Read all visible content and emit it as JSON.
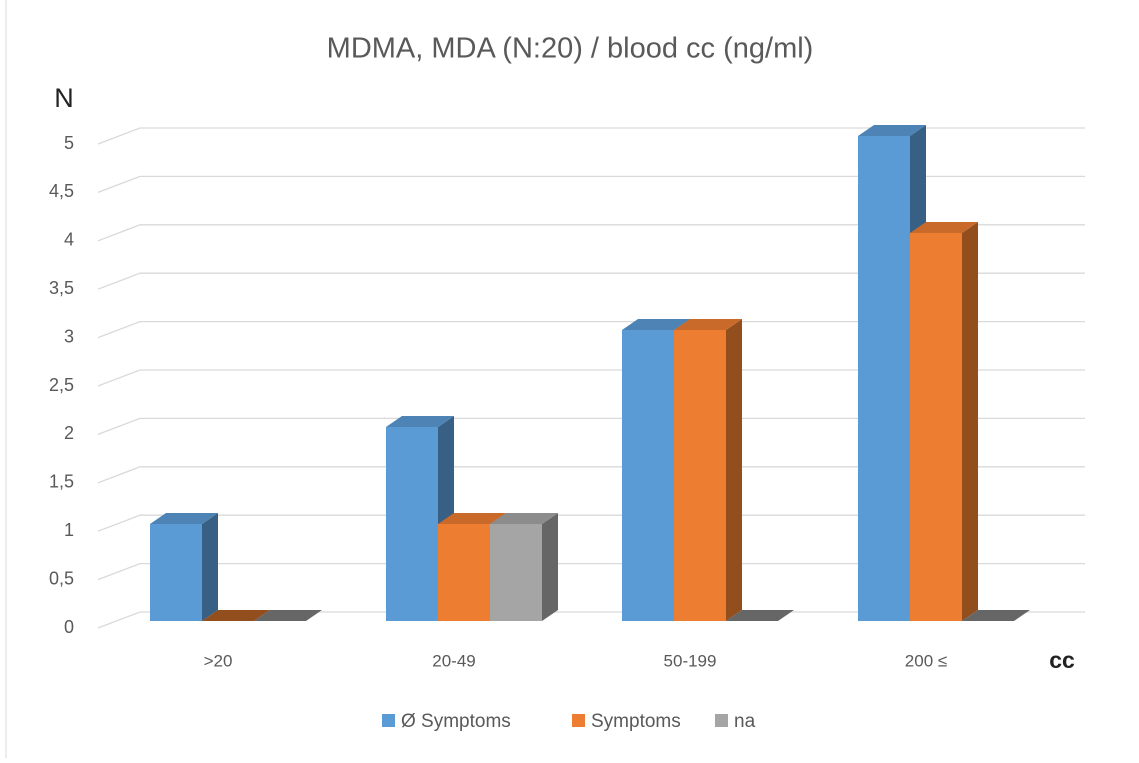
{
  "chart_data": {
    "type": "bar3d",
    "title": "MDMA, MDA (N:20) / blood cc (ng/ml)",
    "y_label": "N",
    "x_label": "cc",
    "categories": [
      ">20",
      "20-49",
      "50-199",
      "200 ≤"
    ],
    "series": [
      {
        "name": "Ø Symptoms",
        "color": "#5b9bd5",
        "values": [
          1,
          2,
          3,
          5
        ]
      },
      {
        "name": "Symptoms",
        "color": "#ed7d31",
        "values": [
          0,
          1,
          3,
          4
        ]
      },
      {
        "name": "na",
        "color": "#a5a5a5",
        "values": [
          0,
          1,
          0,
          0
        ]
      }
    ],
    "ylim": [
      0,
      5
    ],
    "yticks": [
      0,
      {
        "value": 0.5,
        "label": "0,5"
      },
      1,
      {
        "value": 1.5,
        "label": "1,5"
      },
      2,
      {
        "value": 2.5,
        "label": "2,5"
      },
      3,
      {
        "value": 3.5,
        "label": "3,5"
      },
      4,
      {
        "value": 4.5,
        "label": "4,5"
      },
      5
    ],
    "grid": true,
    "legend": "bottom"
  }
}
